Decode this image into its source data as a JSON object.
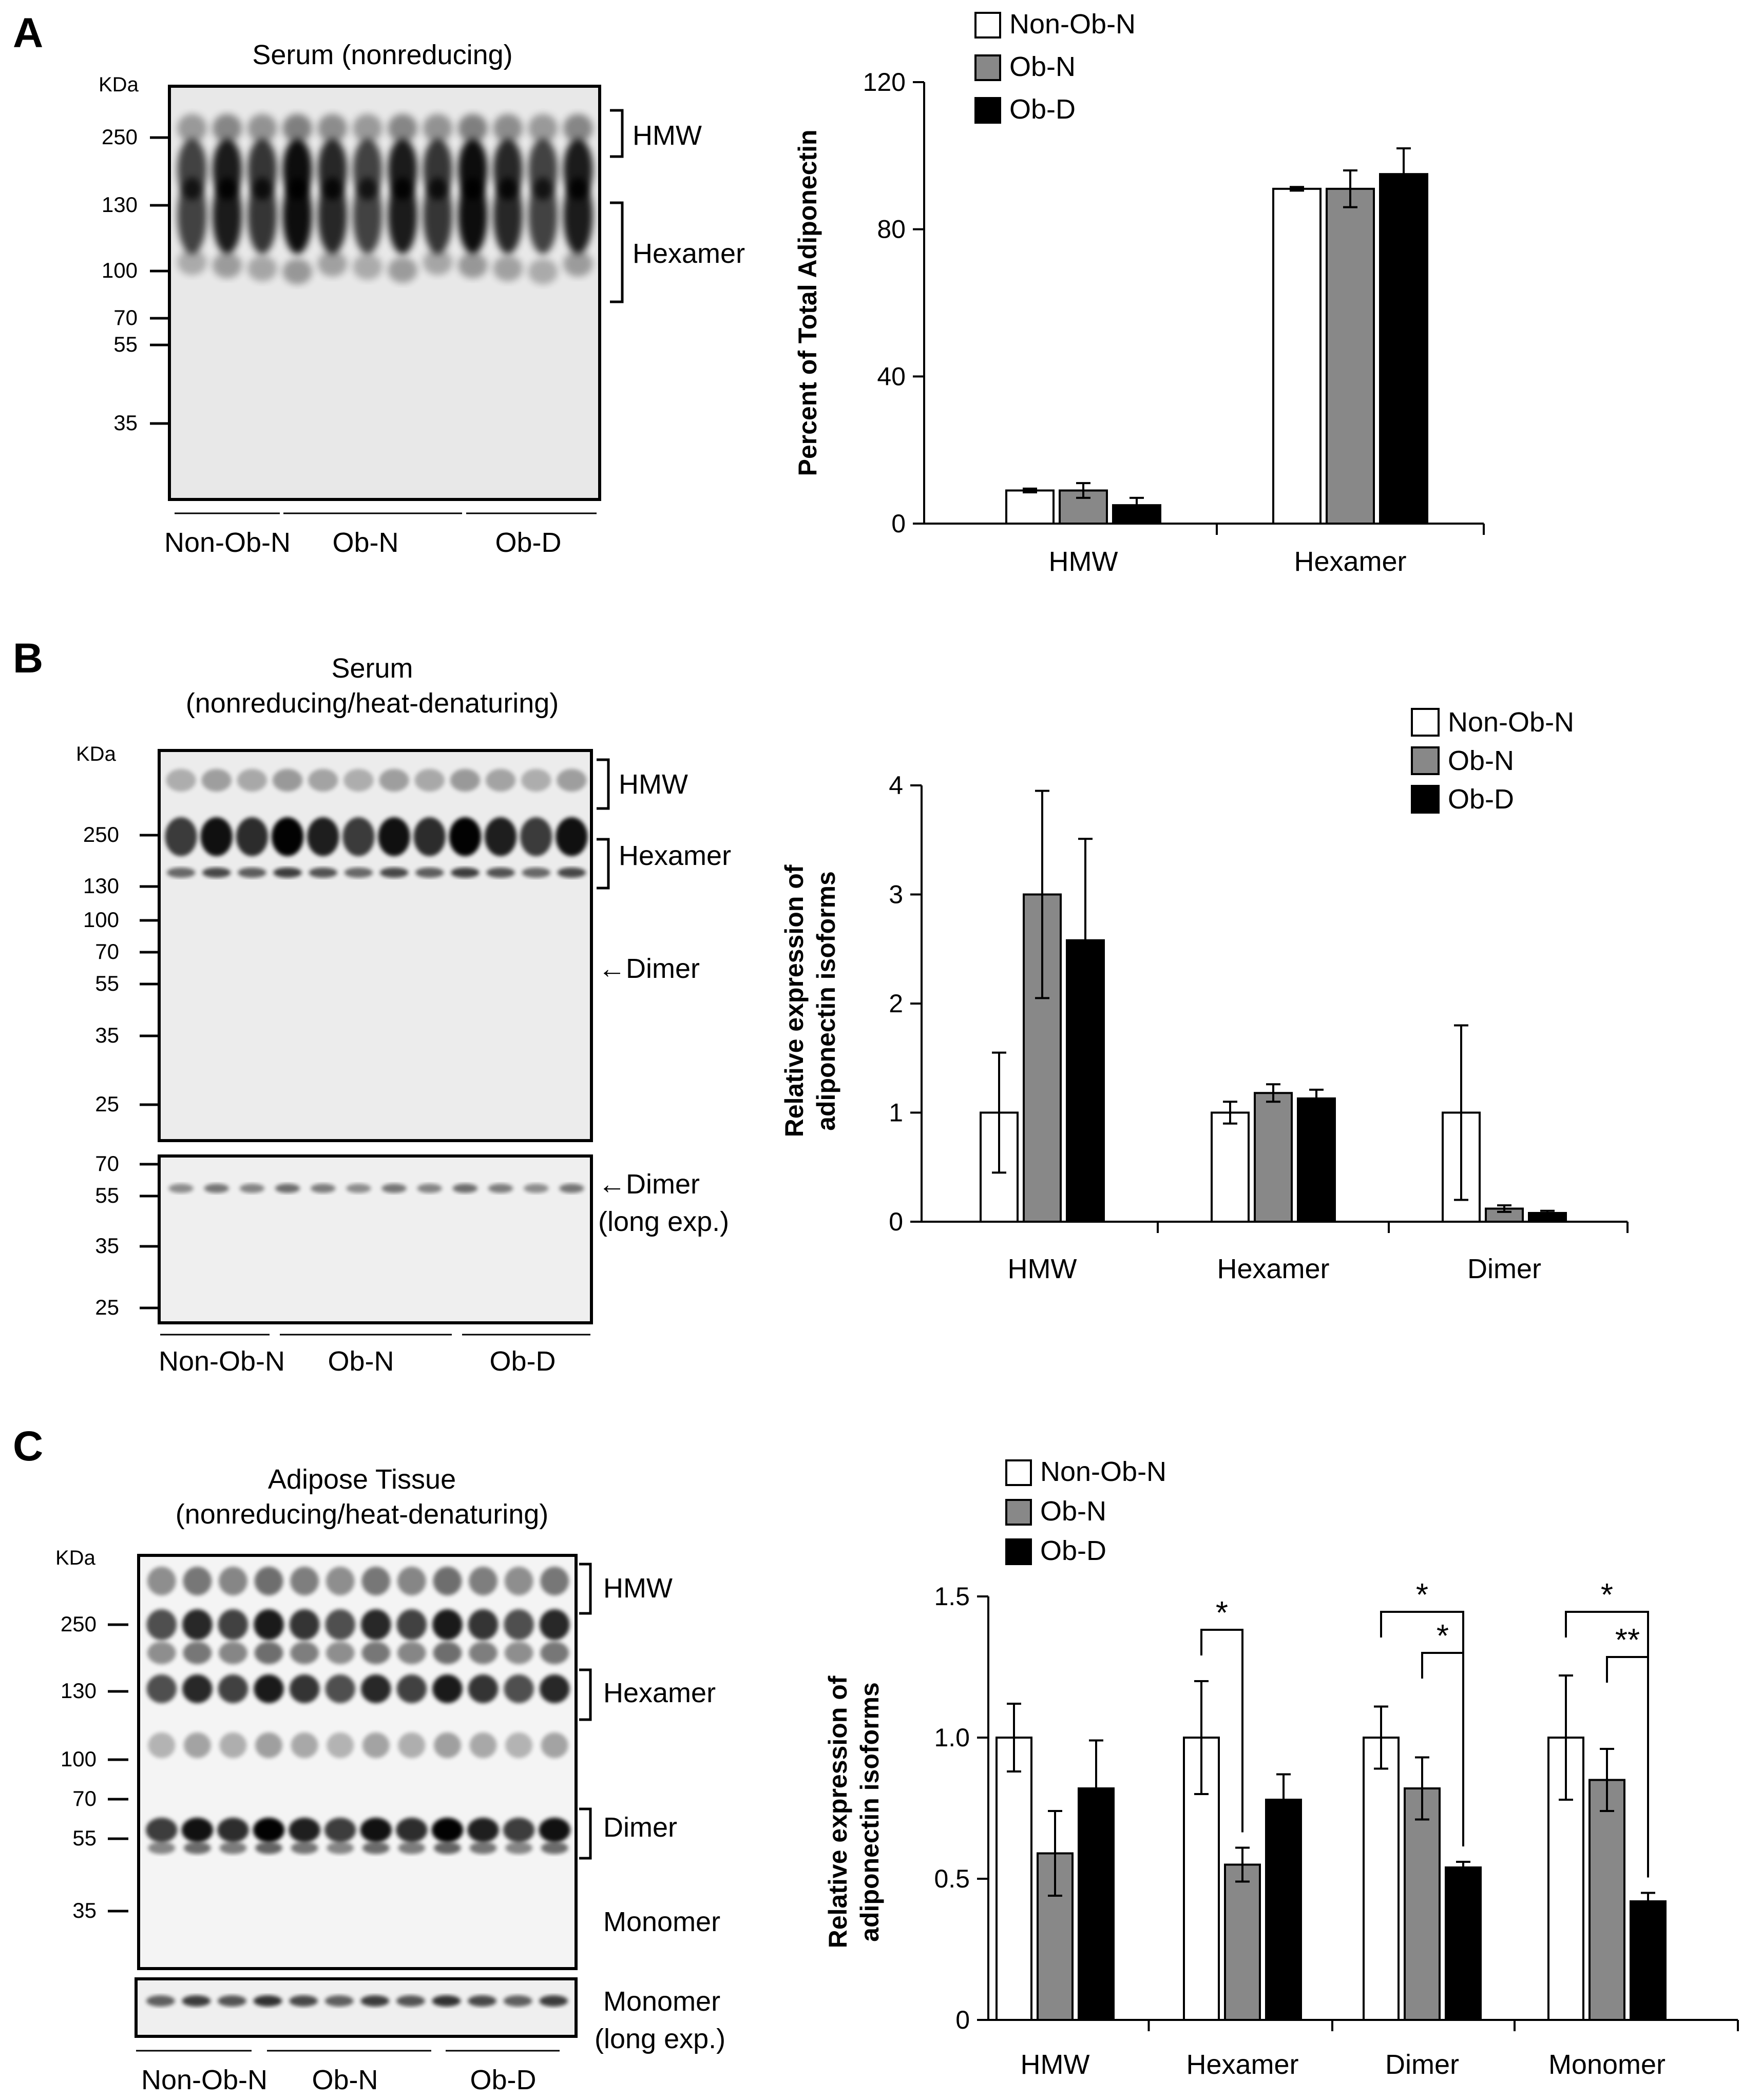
{
  "legend_labels": [
    "Non-Ob-N",
    "Ob-N",
    "Ob-D"
  ],
  "colors": {
    "non_ob_n": "#ffffff",
    "ob_n": "#888888",
    "ob_d": "#000000"
  },
  "panels": [
    {
      "letter": "A",
      "blot": {
        "title_lines": [
          "Serum (nonreducing)"
        ],
        "kda_label": "KDa",
        "markers": [
          "250",
          "130",
          "100",
          "70",
          "55",
          "35"
        ],
        "bands": [
          "HMW",
          "Hexamer"
        ],
        "groups": [
          "Non-Ob-N",
          "Ob-N",
          "Ob-D"
        ],
        "lanes": 12
      }
    },
    {
      "letter": "B",
      "blot": {
        "title_lines": [
          "Serum",
          "(nonreducing/heat-denaturing)"
        ],
        "kda_label": "KDa",
        "markers": [
          "250",
          "130",
          "100",
          "70",
          "55",
          "35",
          "25"
        ],
        "bands": [
          "HMW",
          "Hexamer",
          "←Dimer"
        ],
        "inset_markers": [
          "70",
          "55",
          "35",
          "25"
        ],
        "inset_label_lines": [
          "←Dimer",
          "(long exp.)"
        ],
        "groups": [
          "Non-Ob-N",
          "Ob-N",
          "Ob-D"
        ],
        "lanes": 12
      }
    },
    {
      "letter": "C",
      "blot": {
        "title_lines": [
          "Adipose Tissue",
          "(nonreducing/heat-denaturing)"
        ],
        "kda_label": "KDa",
        "markers": [
          "250",
          "130",
          "100",
          "70",
          "55",
          "35"
        ],
        "bands": [
          "HMW",
          "Hexamer",
          "Dimer",
          "Monomer"
        ],
        "inset_label_lines": [
          "Monomer",
          "(long exp.)"
        ],
        "groups": [
          "Non-Ob-N",
          "Ob-N",
          "Ob-D"
        ],
        "lanes": 12
      }
    }
  ],
  "chart_data": [
    {
      "type": "bar",
      "panel": "A",
      "categories": [
        "HMW",
        "Hexamer"
      ],
      "series": [
        {
          "name": "Non-Ob-N",
          "values": [
            9,
            91
          ],
          "errors": [
            0.5,
            0.5
          ]
        },
        {
          "name": "Ob-N",
          "values": [
            9,
            91
          ],
          "errors": [
            2,
            5
          ]
        },
        {
          "name": "Ob-D",
          "values": [
            5,
            95
          ],
          "errors": [
            2,
            7
          ]
        }
      ],
      "ylabel": "Percent of Total Adiponectin",
      "ylim": [
        0,
        120
      ],
      "yticks": [
        "0",
        "40",
        "80",
        "120"
      ],
      "significance": []
    },
    {
      "type": "bar",
      "panel": "B",
      "categories": [
        "HMW",
        "Hexamer",
        "Dimer"
      ],
      "series": [
        {
          "name": "Non-Ob-N",
          "values": [
            1.0,
            1.0,
            1.0
          ],
          "errors": [
            0.55,
            0.1,
            0.8
          ]
        },
        {
          "name": "Ob-N",
          "values": [
            3.0,
            1.18,
            0.12
          ],
          "errors": [
            0.95,
            0.08,
            0.03
          ]
        },
        {
          "name": "Ob-D",
          "values": [
            2.58,
            1.13,
            0.08
          ],
          "errors": [
            0.93,
            0.08,
            0.02
          ]
        }
      ],
      "ylabel": "Relative expression of adiponectin isoforms",
      "ylabel_lines": [
        "Relative expression of",
        "adiponectin isoforms"
      ],
      "ylim": [
        0,
        4
      ],
      "yticks": [
        "0",
        "1",
        "2",
        "3",
        "4"
      ],
      "significance": []
    },
    {
      "type": "bar",
      "panel": "C",
      "categories": [
        "HMW",
        "Hexamer",
        "Dimer",
        "Monomer"
      ],
      "series": [
        {
          "name": "Non-Ob-N",
          "values": [
            1.0,
            1.0,
            1.0,
            1.0
          ],
          "errors": [
            0.12,
            0.2,
            0.11,
            0.22
          ]
        },
        {
          "name": "Ob-N",
          "values": [
            0.59,
            0.55,
            0.82,
            0.85
          ],
          "errors": [
            0.15,
            0.06,
            0.11,
            0.11
          ]
        },
        {
          "name": "Ob-D",
          "values": [
            0.82,
            0.78,
            0.54,
            0.42
          ],
          "errors": [
            0.17,
            0.09,
            0.02,
            0.03
          ]
        }
      ],
      "ylabel": "Relative expression of adiponectin isoforms",
      "ylabel_lines": [
        "Relative expression of",
        "adiponectin isoforms"
      ],
      "ylim": [
        0,
        1.5
      ],
      "yticks": [
        "0",
        "0.5",
        "1.0",
        "1.5"
      ],
      "significance": [
        {
          "category": "Hexamer",
          "from": "Non-Ob-N",
          "to": "Ob-N",
          "label": "*"
        },
        {
          "category": "Dimer",
          "from": "Non-Ob-N",
          "to": "Ob-D",
          "label": "*"
        },
        {
          "category": "Dimer",
          "from": "Ob-N",
          "to": "Ob-D",
          "label": "*"
        },
        {
          "category": "Monomer",
          "from": "Non-Ob-N",
          "to": "Ob-D",
          "label": "*"
        },
        {
          "category": "Monomer",
          "from": "Ob-N",
          "to": "Ob-D",
          "label": "**"
        }
      ]
    }
  ]
}
